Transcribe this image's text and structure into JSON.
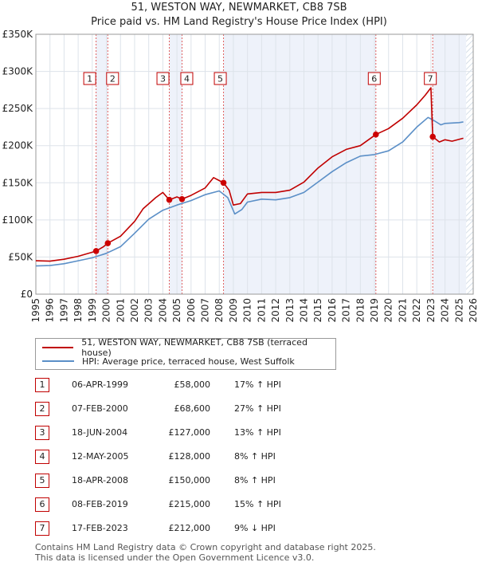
{
  "title_line1": "51, WESTON WAY, NEWMARKET, CB8 7SB",
  "title_line2": "Price paid vs. HM Land Registry's House Price Index (HPI)",
  "chart_data": {
    "type": "line",
    "x_start": 1995,
    "x_end": 2026,
    "ylim": [
      0,
      350000
    ],
    "y_ticks": [
      {
        "value": 0,
        "label": "£0"
      },
      {
        "value": 50000,
        "label": "£50K"
      },
      {
        "value": 100000,
        "label": "£100K"
      },
      {
        "value": 150000,
        "label": "£150K"
      },
      {
        "value": 200000,
        "label": "£200K"
      },
      {
        "value": 250000,
        "label": "£250K"
      },
      {
        "value": 300000,
        "label": "£300K"
      },
      {
        "value": 350000,
        "label": "£350K"
      }
    ],
    "x_ticks": [
      "1995",
      "1996",
      "1997",
      "1998",
      "1999",
      "2000",
      "2001",
      "2002",
      "2003",
      "2004",
      "2005",
      "2006",
      "2007",
      "2008",
      "2009",
      "2010",
      "2011",
      "2012",
      "2013",
      "2014",
      "2015",
      "2016",
      "2017",
      "2018",
      "2019",
      "2020",
      "2021",
      "2022",
      "2023",
      "2024",
      "2025",
      "2026"
    ],
    "series": [
      {
        "name": "51, WESTON WAY, NEWMARKET, CB8 7SB (terraced house)",
        "color": "#c00000",
        "points": [
          [
            1995.0,
            45000
          ],
          [
            1996.0,
            44500
          ],
          [
            1997.0,
            47000
          ],
          [
            1998.0,
            51000
          ],
          [
            1999.27,
            58000
          ],
          [
            1999.8,
            64000
          ],
          [
            2000.1,
            68600
          ],
          [
            2001.0,
            78000
          ],
          [
            2002.0,
            98000
          ],
          [
            2002.6,
            115000
          ],
          [
            2003.5,
            130000
          ],
          [
            2004.0,
            137000
          ],
          [
            2004.46,
            127000
          ],
          [
            2005.0,
            131000
          ],
          [
            2005.36,
            128000
          ],
          [
            2006.0,
            133000
          ],
          [
            2007.0,
            143000
          ],
          [
            2007.6,
            157000
          ],
          [
            2008.0,
            153000
          ],
          [
            2008.3,
            150000
          ],
          [
            2008.7,
            140000
          ],
          [
            2009.0,
            120000
          ],
          [
            2009.5,
            122000
          ],
          [
            2010.0,
            135000
          ],
          [
            2011.0,
            137000
          ],
          [
            2012.0,
            137000
          ],
          [
            2013.0,
            140000
          ],
          [
            2014.0,
            151000
          ],
          [
            2015.0,
            170000
          ],
          [
            2016.0,
            185000
          ],
          [
            2017.0,
            195000
          ],
          [
            2018.0,
            200000
          ],
          [
            2019.1,
            215000
          ],
          [
            2020.0,
            223000
          ],
          [
            2021.0,
            237000
          ],
          [
            2022.0,
            255000
          ],
          [
            2022.6,
            268000
          ],
          [
            2023.0,
            278000
          ],
          [
            2023.13,
            212000
          ],
          [
            2023.6,
            205000
          ],
          [
            2024.0,
            208000
          ],
          [
            2024.5,
            206000
          ],
          [
            2025.3,
            210000
          ]
        ]
      },
      {
        "name": "HPI: Average price, terraced house, West Suffolk",
        "color": "#5b8fc7",
        "points": [
          [
            1995.0,
            38000
          ],
          [
            1996.0,
            38500
          ],
          [
            1997.0,
            41000
          ],
          [
            1998.0,
            45000
          ],
          [
            1999.0,
            49000
          ],
          [
            2000.0,
            55000
          ],
          [
            2001.0,
            64000
          ],
          [
            2002.0,
            82000
          ],
          [
            2003.0,
            101000
          ],
          [
            2004.0,
            113000
          ],
          [
            2005.0,
            120000
          ],
          [
            2006.0,
            126000
          ],
          [
            2007.0,
            134000
          ],
          [
            2008.0,
            139000
          ],
          [
            2008.6,
            130000
          ],
          [
            2009.1,
            108000
          ],
          [
            2009.6,
            114000
          ],
          [
            2010.0,
            124000
          ],
          [
            2011.0,
            128000
          ],
          [
            2012.0,
            127000
          ],
          [
            2013.0,
            130000
          ],
          [
            2014.0,
            137000
          ],
          [
            2015.0,
            151000
          ],
          [
            2016.0,
            165000
          ],
          [
            2017.0,
            177000
          ],
          [
            2018.0,
            186000
          ],
          [
            2019.0,
            188000
          ],
          [
            2020.0,
            193000
          ],
          [
            2021.0,
            205000
          ],
          [
            2022.0,
            225000
          ],
          [
            2022.8,
            238000
          ],
          [
            2023.2,
            234000
          ],
          [
            2023.7,
            228000
          ],
          [
            2024.0,
            230000
          ],
          [
            2025.0,
            231000
          ],
          [
            2025.3,
            232000
          ]
        ]
      }
    ],
    "sales": [
      {
        "label": "1",
        "x": 1999.27,
        "price": 58000
      },
      {
        "label": "2",
        "x": 2000.1,
        "price": 68600
      },
      {
        "label": "3",
        "x": 2004.46,
        "price": 127000
      },
      {
        "label": "4",
        "x": 2005.36,
        "price": 128000
      },
      {
        "label": "5",
        "x": 2008.3,
        "price": 150000
      },
      {
        "label": "6",
        "x": 2019.1,
        "price": 215000
      },
      {
        "label": "7",
        "x": 2023.13,
        "price": 212000
      }
    ],
    "shaded_ranges": [
      [
        1999.27,
        2000.1
      ],
      [
        2004.46,
        2005.36
      ],
      [
        2008.3,
        2019.1
      ],
      [
        2023.13,
        2025.5
      ]
    ],
    "hatched_from": 2025.5
  },
  "legend": {
    "property_label": "51, WESTON WAY, NEWMARKET, CB8 7SB (terraced house)",
    "hpi_label": "HPI: Average price, terraced house, West Suffolk",
    "property_color": "#c00000",
    "hpi_color": "#5b8fc7"
  },
  "transactions": [
    {
      "num": "1",
      "date": "06-APR-1999",
      "price": "£58,000",
      "hpi": "17% ↑ HPI"
    },
    {
      "num": "2",
      "date": "07-FEB-2000",
      "price": "£68,600",
      "hpi": "27% ↑ HPI"
    },
    {
      "num": "3",
      "date": "18-JUN-2004",
      "price": "£127,000",
      "hpi": "13% ↑ HPI"
    },
    {
      "num": "4",
      "date": "12-MAY-2005",
      "price": "£128,000",
      "hpi": "8% ↑ HPI"
    },
    {
      "num": "5",
      "date": "18-APR-2008",
      "price": "£150,000",
      "hpi": "8% ↑ HPI"
    },
    {
      "num": "6",
      "date": "08-FEB-2019",
      "price": "£215,000",
      "hpi": "15% ↑ HPI"
    },
    {
      "num": "7",
      "date": "17-FEB-2023",
      "price": "£212,000",
      "hpi": "9% ↓ HPI"
    }
  ],
  "footer_line1": "Contains HM Land Registry data © Crown copyright and database right 2025.",
  "footer_line2": "This data is licensed under the Open Government Licence v3.0."
}
